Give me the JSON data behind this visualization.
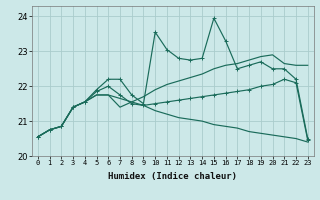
{
  "title": "",
  "xlabel": "Humidex (Indice chaleur)",
  "xlim": [
    -0.5,
    23.5
  ],
  "ylim": [
    20.0,
    24.3
  ],
  "yticks": [
    20,
    21,
    22,
    23,
    24
  ],
  "xticks": [
    0,
    1,
    2,
    3,
    4,
    5,
    6,
    7,
    8,
    9,
    10,
    11,
    12,
    13,
    14,
    15,
    16,
    17,
    18,
    19,
    20,
    21,
    22,
    23
  ],
  "bg_color": "#cce8e8",
  "grid_color": "#aacccc",
  "line_color": "#1a6b5a",
  "line1_x": [
    0,
    1,
    2,
    3,
    4,
    5,
    6,
    7,
    8,
    9,
    10,
    11,
    12,
    13,
    14,
    15,
    16,
    17,
    18,
    19,
    20,
    21,
    22,
    23
  ],
  "line1_y": [
    20.55,
    20.75,
    20.85,
    21.4,
    21.55,
    21.9,
    22.2,
    22.2,
    21.75,
    21.5,
    23.55,
    23.05,
    22.8,
    22.75,
    22.8,
    23.95,
    23.3,
    22.5,
    22.6,
    22.7,
    22.5,
    22.5,
    22.2,
    20.5
  ],
  "line2_x": [
    0,
    1,
    2,
    3,
    4,
    5,
    6,
    7,
    8,
    9,
    10,
    11,
    12,
    13,
    14,
    15,
    16,
    17,
    18,
    19,
    20,
    21,
    22,
    23
  ],
  "line2_y": [
    20.55,
    20.75,
    20.85,
    21.4,
    21.55,
    21.75,
    21.75,
    21.65,
    21.55,
    21.45,
    21.3,
    21.2,
    21.1,
    21.05,
    21.0,
    20.9,
    20.85,
    20.8,
    20.7,
    20.65,
    20.6,
    20.55,
    20.5,
    20.4
  ],
  "line3_x": [
    0,
    1,
    2,
    3,
    4,
    5,
    6,
    7,
    8,
    9,
    10,
    11,
    12,
    13,
    14,
    15,
    16,
    17,
    18,
    19,
    20,
    21,
    22,
    23
  ],
  "line3_y": [
    20.55,
    20.75,
    20.85,
    21.4,
    21.55,
    21.75,
    21.75,
    21.4,
    21.55,
    21.7,
    21.9,
    22.05,
    22.15,
    22.25,
    22.35,
    22.5,
    22.6,
    22.65,
    22.75,
    22.85,
    22.9,
    22.65,
    22.6,
    22.6
  ],
  "line4_x": [
    0,
    1,
    2,
    3,
    4,
    5,
    6,
    7,
    8,
    9,
    10,
    11,
    12,
    13,
    14,
    15,
    16,
    17,
    18,
    19,
    20,
    21,
    22,
    23
  ],
  "line4_y": [
    20.55,
    20.75,
    20.85,
    21.4,
    21.55,
    21.85,
    22.0,
    21.75,
    21.5,
    21.45,
    21.5,
    21.55,
    21.6,
    21.65,
    21.7,
    21.75,
    21.8,
    21.85,
    21.9,
    22.0,
    22.05,
    22.2,
    22.1,
    20.45
  ]
}
